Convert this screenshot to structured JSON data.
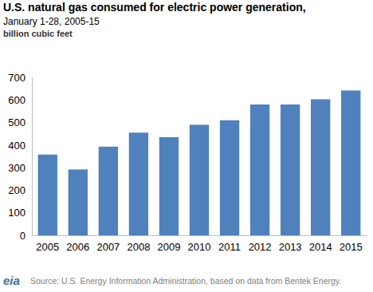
{
  "chart_data": {
    "type": "bar",
    "title": "U.S. natural gas consumed for electric power generation,",
    "subtitle": "January 1-28, 2005-15",
    "y_label": "billion cubic feet",
    "categories": [
      "2005",
      "2006",
      "2007",
      "2008",
      "2009",
      "2010",
      "2011",
      "2012",
      "2013",
      "2014",
      "2015"
    ],
    "values": [
      358,
      292,
      393,
      455,
      435,
      490,
      510,
      580,
      580,
      603,
      642
    ],
    "color": "#4f81bd",
    "ylim": [
      0,
      700
    ],
    "yticks": [
      0,
      100,
      200,
      300,
      400,
      500,
      600,
      700
    ],
    "grid": false,
    "source": "Source: U.S. Energy Information Administration, based on data from Bentek Energy.",
    "logo": "eia"
  }
}
